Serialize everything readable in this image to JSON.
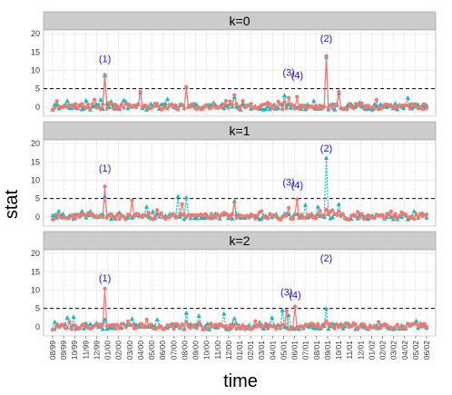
{
  "chart_data": {
    "type": "line",
    "xlabel": "time",
    "ylabel": "stat",
    "ylim": [
      -2.5,
      21
    ],
    "y_ticks": [
      0,
      5,
      10,
      15,
      20
    ],
    "threshold": 5,
    "n_points": 180,
    "x_tick_labels": [
      "08/99",
      "09/99",
      "10/99",
      "11/99",
      "12/99",
      "01/00",
      "02/00",
      "03/00",
      "04/00",
      "05/00",
      "06/00",
      "07/00",
      "08/00",
      "09/00",
      "10/00",
      "11/00",
      "12/00",
      "01/01",
      "02/01",
      "03/01",
      "04/01",
      "05/01",
      "06/01",
      "07/01",
      "08/01",
      "09/01",
      "10/01",
      "11/01",
      "12/01",
      "01/02",
      "02/02",
      "03/02",
      "04/02",
      "05/02",
      "06/02"
    ],
    "panels": [
      {
        "label": "k=0",
        "annotations": [
          {
            "text": "(1)",
            "x": 25,
            "y": 12.2
          },
          {
            "text": "(3)",
            "x": 113,
            "y": 8.5
          },
          {
            "text": "(4)",
            "x": 117,
            "y": 7.8
          },
          {
            "text": "(2)",
            "x": 131,
            "y": 17.8
          }
        ],
        "series1_spikes": {
          "25": 8.8,
          "42": 4.2,
          "64": 5.5,
          "87": 3.3,
          "113": 2.5,
          "117": 2.8,
          "131": 13.9,
          "137": 4.2,
          "155": 2.0
        },
        "series2_spikes": {
          "25": 8.6,
          "16": 1.8,
          "35": 1.5,
          "42": 3.9,
          "55": 2.2,
          "64": 5.3,
          "87": 2.8,
          "111": 3.2,
          "131": 13.7,
          "137": 3.8,
          "170": 2.5
        }
      },
      {
        "label": "k=1",
        "annotations": [
          {
            "text": "(1)",
            "x": 25,
            "y": 12.3
          },
          {
            "text": "(3)",
            "x": 113,
            "y": 8.5
          },
          {
            "text": "(4)",
            "x": 117,
            "y": 7.8
          },
          {
            "text": "(2)",
            "x": 131,
            "y": 17.8
          }
        ],
        "series1_spikes": {
          "25": 8.3,
          "38": 4.5,
          "62": 3.5,
          "87": 4.0,
          "113": 2.5,
          "117": 4.8,
          "131": 2.0,
          "137": 1.5
        },
        "series2_spikes": {
          "25": 5.6,
          "14": 1.6,
          "32": 1.2,
          "45": 2.8,
          "60": 5.6,
          "64": 5.3,
          "87": 4.4,
          "121": 3.3,
          "127": 2.8,
          "131": 16.1,
          "137": 3.5
        }
      },
      {
        "label": "k=2",
        "annotations": [
          {
            "text": "(1)",
            "x": 25,
            "y": 12.3
          },
          {
            "text": "(3)",
            "x": 112,
            "y": 8.5
          },
          {
            "text": "(4)",
            "x": 116,
            "y": 7.8
          },
          {
            "text": "(2)",
            "x": 131,
            "y": 17.8
          }
        ],
        "series1_spikes": {
          "25": 10.4,
          "45": 2.0,
          "112": 4.3,
          "116": 5.5,
          "131": 1.5
        },
        "series2_spikes": {
          "7": 2.5,
          "10": 2.7,
          "25": 2.0,
          "38": 2.2,
          "50": 2.0,
          "64": 3.8,
          "70": 3.0,
          "82": 3.6,
          "87": 2.3,
          "105": 2.5,
          "110": 4.5,
          "113": 3.2,
          "131": 5.0
        }
      }
    ]
  }
}
